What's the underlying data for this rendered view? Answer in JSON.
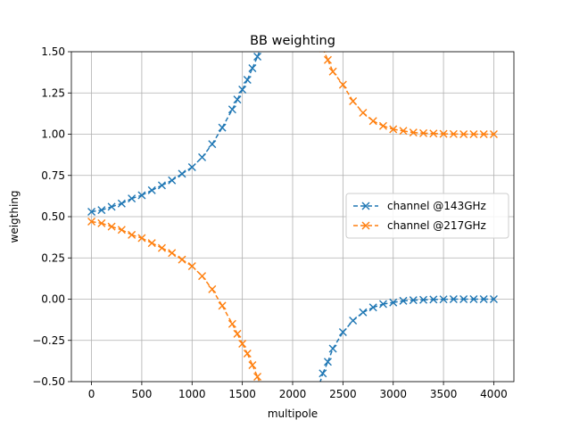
{
  "chart_data": {
    "type": "scatter",
    "title": "BB weighting",
    "xlabel": "multipole",
    "ylabel": "weigthing",
    "xlim": [
      -200,
      4200
    ],
    "ylim": [
      -0.5,
      1.5
    ],
    "xticks": [
      0,
      500,
      1000,
      1500,
      2000,
      2500,
      3000,
      3500,
      4000
    ],
    "yticks": [
      -0.5,
      -0.25,
      0.0,
      0.25,
      0.5,
      0.75,
      1.0,
      1.25,
      1.5
    ],
    "xtick_labels": [
      "0",
      "500",
      "1000",
      "1500",
      "2000",
      "2500",
      "3000",
      "3500",
      "4000"
    ],
    "ytick_labels": [
      "−0.50",
      "−0.25",
      "0.00",
      "0.25",
      "0.50",
      "0.75",
      "1.00",
      "1.25",
      "1.50"
    ],
    "grid": true,
    "legend_position": "center-right",
    "series": [
      {
        "name": "channel @143GHz",
        "color": "#1f77b4",
        "marker": "x",
        "linestyle": "dashed",
        "x": [
          0,
          100,
          200,
          300,
          400,
          500,
          600,
          700,
          800,
          900,
          1000,
          1100,
          1200,
          1300,
          1400,
          1450,
          1500,
          1550,
          1600,
          1650,
          1700,
          2250,
          2300,
          2350,
          2400,
          2500,
          2600,
          2700,
          2800,
          2900,
          3000,
          3100,
          3200,
          3300,
          3400,
          3500,
          3600,
          3700,
          3800,
          3900,
          4000
        ],
        "y": [
          0.53,
          0.54,
          0.56,
          0.58,
          0.61,
          0.63,
          0.66,
          0.69,
          0.72,
          0.76,
          0.8,
          0.86,
          0.94,
          1.04,
          1.15,
          1.21,
          1.27,
          1.33,
          1.4,
          1.47,
          1.55,
          -0.55,
          -0.45,
          -0.38,
          -0.3,
          -0.2,
          -0.13,
          -0.08,
          -0.05,
          -0.03,
          -0.02,
          -0.01,
          -0.006,
          -0.004,
          -0.002,
          -0.001,
          0.0,
          0.0,
          0.0,
          0.0,
          0.0
        ]
      },
      {
        "name": "channel @217GHz",
        "color": "#ff7f0e",
        "marker": "x",
        "linestyle": "dashed",
        "x": [
          0,
          100,
          200,
          300,
          400,
          500,
          600,
          700,
          800,
          900,
          1000,
          1100,
          1200,
          1300,
          1400,
          1450,
          1500,
          1550,
          1600,
          1650,
          1700,
          1900,
          1900,
          2300,
          2350,
          2400,
          2500,
          2600,
          2700,
          2800,
          2900,
          3000,
          3100,
          3200,
          3300,
          3400,
          3500,
          3600,
          3700,
          3800,
          3900,
          4000
        ],
        "y": [
          0.47,
          0.46,
          0.44,
          0.42,
          0.39,
          0.37,
          0.34,
          0.31,
          0.28,
          0.24,
          0.2,
          0.14,
          0.06,
          -0.04,
          -0.15,
          -0.21,
          -0.27,
          -0.33,
          -0.4,
          -0.47,
          -0.55,
          -0.55,
          1.55,
          1.52,
          1.45,
          1.38,
          1.3,
          1.2,
          1.13,
          1.08,
          1.05,
          1.03,
          1.02,
          1.01,
          1.006,
          1.004,
          1.002,
          1.001,
          1.0,
          1.0,
          1.0,
          1.0
        ]
      }
    ]
  }
}
